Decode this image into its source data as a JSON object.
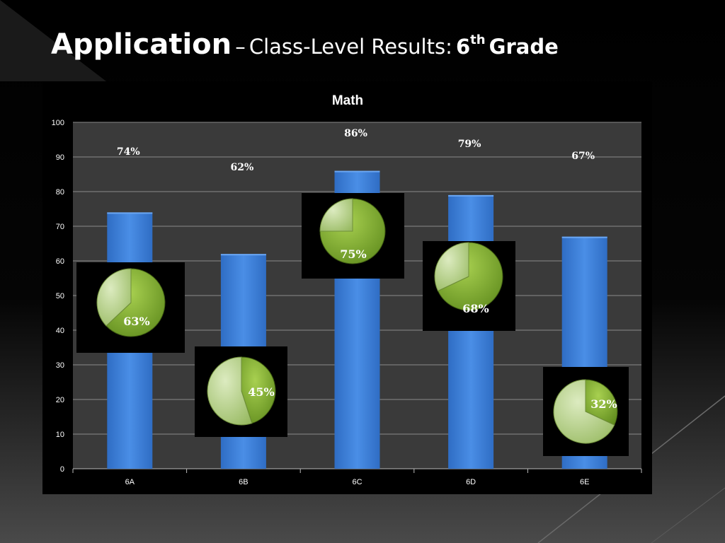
{
  "slide": {
    "title_main": "Application",
    "title_dash": "–",
    "title_sub": "Class-Level Results:",
    "title_grade_num": "6",
    "title_grade_sup": "th",
    "title_grade_word": "Grade"
  },
  "colors": {
    "bar": "#3b7fd9",
    "plot_bg": "#3a3a3a",
    "pie_dark": "#7fae32",
    "pie_light": "#b9d38e"
  },
  "chart_data": {
    "type": "bar",
    "title": "Math",
    "categories": [
      "6A",
      "6B",
      "6C",
      "6D",
      "6E"
    ],
    "values": [
      74,
      62,
      86,
      79,
      67
    ],
    "value_labels": [
      "74%",
      "62%",
      "86%",
      "79%",
      "67%"
    ],
    "ylim": [
      0,
      100
    ],
    "yticks": [
      0,
      10,
      20,
      30,
      40,
      50,
      60,
      70,
      80,
      90,
      100
    ],
    "grid": true,
    "legend": "none",
    "insets": [
      {
        "category": "6A",
        "type": "pie",
        "value": 63,
        "label": "63%"
      },
      {
        "category": "6B",
        "type": "pie",
        "value": 45,
        "label": "45%"
      },
      {
        "category": "6C",
        "type": "pie",
        "value": 75,
        "label": "75%"
      },
      {
        "category": "6D",
        "type": "pie",
        "value": 68,
        "label": "68%"
      },
      {
        "category": "6E",
        "type": "pie",
        "value": 32,
        "label": "32%"
      }
    ]
  }
}
